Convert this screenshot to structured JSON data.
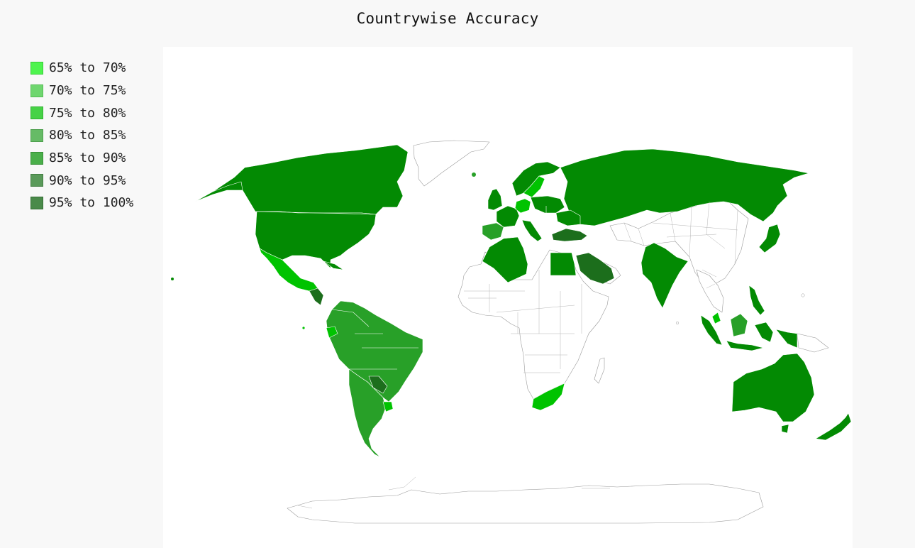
{
  "title": "Countrywise Accuracy",
  "legend": [
    {
      "label": "65% to 70%",
      "color": "#4ef44e",
      "border": "#36cc36"
    },
    {
      "label": "70% to 75%",
      "color": "#6fd66f",
      "border": "#55bb55"
    },
    {
      "label": "75% to 80%",
      "color": "#46d246",
      "border": "#32b032"
    },
    {
      "label": "80% to 85%",
      "color": "#66bb66",
      "border": "#4d9e4d"
    },
    {
      "label": "85% to 90%",
      "color": "#4aaf4a",
      "border": "#368f36"
    },
    {
      "label": "90% to 95%",
      "color": "#5a9a5a",
      "border": "#437d43"
    },
    {
      "label": "95% to 100%",
      "color": "#4a8a4a",
      "border": "#346d34"
    }
  ],
  "map_colors": {
    "dark_green": "#038a03",
    "medium_green": "#28a028",
    "bright_green": "#00c300",
    "deep_green": "#1c6e1c",
    "no_data": "#ffffff"
  }
}
